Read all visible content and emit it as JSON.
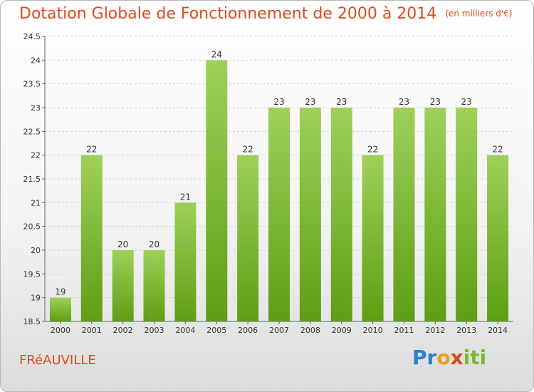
{
  "title": "Dotation Globale de Fonctionnement de 2000 à 2014",
  "unit": "(en milliers d'€)",
  "commune": "FRéAUVILLE",
  "logo": [
    "P",
    "r",
    "o",
    "x",
    "i",
    "ti"
  ],
  "colors": {
    "bar_top": "#9fd05a",
    "bar_bottom": "#5e9e14",
    "title": "#e04a1a"
  },
  "chart_data": {
    "type": "bar",
    "categories": [
      "2000",
      "2001",
      "2002",
      "2003",
      "2004",
      "2005",
      "2006",
      "2007",
      "2008",
      "2009",
      "2010",
      "2011",
      "2012",
      "2013",
      "2014"
    ],
    "values": [
      19,
      22,
      20,
      20,
      21,
      24,
      22,
      23,
      23,
      23,
      22,
      23,
      23,
      23,
      22
    ],
    "value_labels": [
      "19",
      "22",
      "20",
      "20",
      "21",
      "24",
      "22",
      "23",
      "23",
      "23",
      "22",
      "23",
      "23",
      "23",
      "22"
    ],
    "yticks": [
      18.5,
      19,
      19.5,
      20,
      20.5,
      21,
      21.5,
      22,
      22.5,
      23,
      23.5,
      24,
      24.5
    ],
    "ytick_labels": [
      "18.5",
      "19",
      "19.5",
      "20",
      "20.5",
      "21",
      "21.5",
      "22",
      "22.5",
      "23",
      "23.5",
      "24",
      "24.5"
    ],
    "ylim": [
      18.5,
      24.5
    ],
    "grid": true
  }
}
